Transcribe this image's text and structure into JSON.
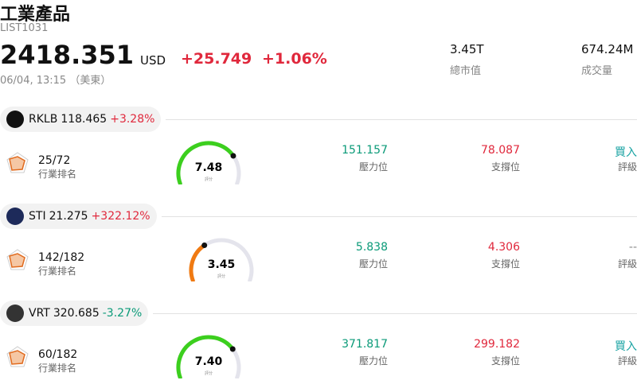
{
  "header": {
    "title": "工業產品",
    "code": "LIST1031",
    "price": "2418.351",
    "currency": "USD",
    "change": "+25.749",
    "change_pct": "+1.06%",
    "change_color": "#e0283c",
    "time": "06/04, 13:15 （美東）",
    "stats": [
      {
        "value": "3.45T",
        "label": "總市值"
      },
      {
        "value": "674.24M",
        "label": "成交量"
      }
    ]
  },
  "stocks": [
    {
      "ticker": "RKLB",
      "price": "118.465",
      "change": "+3.28%",
      "change_color": "#e0283c",
      "rank": "25/72",
      "rank_label": "行業排名",
      "score": {
        "value": 7.48,
        "label": "7.48"
      },
      "score_label": "評分",
      "gauge_color": "#3ccf1e",
      "resistance": "151.157",
      "resistance_label": "壓力位",
      "support": "78.087",
      "support_label": "支撐位",
      "rating": "買入",
      "rating_color": "#1aa3a3",
      "rating_label": "評級"
    },
    {
      "ticker": "STI",
      "price": "21.275",
      "change": "+322.12%",
      "change_color": "#e0283c",
      "rank": "142/182",
      "rank_label": "行業排名",
      "score": {
        "value": 3.45,
        "label": "3.45"
      },
      "score_label": "評分",
      "gauge_color": "#f07a12",
      "resistance": "5.838",
      "resistance_label": "壓力位",
      "support": "4.306",
      "support_label": "支撐位",
      "rating": "--",
      "rating_color": "#888888",
      "rating_label": "評級"
    },
    {
      "ticker": "VRT",
      "price": "320.685",
      "change": "-3.27%",
      "change_color": "#0a9a78",
      "rank": "60/182",
      "rank_label": "行業排名",
      "score": {
        "value": 7.4,
        "label": "7.40"
      },
      "score_label": "評分",
      "gauge_color": "#3ccf1e",
      "resistance": "371.817",
      "resistance_label": "壓力位",
      "support": "299.182",
      "support_label": "支撐位",
      "rating": "買入",
      "rating_color": "#1aa3a3",
      "rating_label": "評級"
    }
  ]
}
